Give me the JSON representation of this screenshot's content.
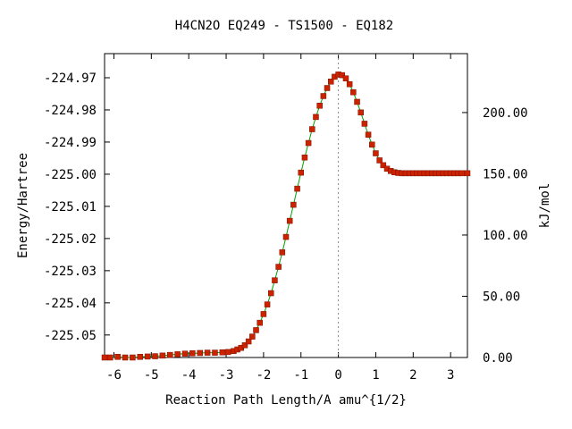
{
  "chart_data": {
    "type": "line",
    "title": "H4CN2O   EQ249 - TS1500 - EQ182",
    "xlabel": "Reaction Path Length/A amu^{1/2}",
    "ylabel": "Energy/Hartree",
    "y2label": "kJ/mol",
    "xlim": [
      -6.25,
      3.45
    ],
    "ylim": [
      -225.057,
      -224.9625
    ],
    "y2lim": [
      0.0,
      248.1
    ],
    "x_ticks": [
      "-6",
      "-5",
      "-4",
      "-3",
      "-2",
      "-1",
      "0",
      "1",
      "2",
      "3"
    ],
    "y_ticks": [
      "-224.97",
      "-224.98",
      "-224.99",
      "-225.00",
      "-225.01",
      "-225.02",
      "-225.03",
      "-225.04",
      "-225.05"
    ],
    "y2_ticks": [
      "0.00",
      "50.00",
      "100.00",
      "150.00",
      "200.00"
    ],
    "ts_marker_x": 0.0,
    "line_color": "#00a000",
    "marker_color": "#cc2200",
    "ts_line_color": "#888888",
    "series": [
      {
        "x": [
          -6.25,
          -6.1,
          -5.9,
          -5.7,
          -5.5,
          -5.3,
          -5.1,
          -4.9,
          -4.7,
          -4.5,
          -4.3,
          -4.1,
          -3.9,
          -3.7,
          -3.5,
          -3.3,
          -3.1,
          -2.95,
          -2.8,
          -2.7,
          -2.6,
          -2.5,
          -2.4,
          -2.3,
          -2.2,
          -2.1,
          -2.0,
          -1.9,
          -1.8,
          -1.7,
          -1.6,
          -1.5,
          -1.4,
          -1.3,
          -1.2,
          -1.1,
          -1.0,
          -0.9,
          -0.8,
          -0.7,
          -0.6,
          -0.5,
          -0.4,
          -0.3,
          -0.2,
          -0.1,
          0.0,
          0.1,
          0.2,
          0.3,
          0.4,
          0.5,
          0.6,
          0.7,
          0.8,
          0.9,
          1.0,
          1.1,
          1.2,
          1.3,
          1.4,
          1.5,
          1.6,
          1.7,
          1.8,
          1.9,
          2.0,
          2.1,
          2.2,
          2.3,
          2.4,
          2.5,
          2.6,
          2.7,
          2.8,
          2.9,
          3.0,
          3.1,
          3.2,
          3.3,
          3.45
        ],
        "y": [
          -225.057,
          -225.057,
          -225.0568,
          -225.057,
          -225.057,
          -225.0568,
          -225.0567,
          -225.0566,
          -225.0564,
          -225.0562,
          -225.056,
          -225.0558,
          -225.0557,
          -225.0556,
          -225.0555,
          -225.0555,
          -225.0554,
          -225.0553,
          -225.055,
          -225.0545,
          -225.054,
          -225.0532,
          -225.052,
          -225.0505,
          -225.0485,
          -225.0462,
          -225.0435,
          -225.0405,
          -225.037,
          -225.033,
          -225.0288,
          -225.0243,
          -225.0195,
          -225.0145,
          -225.0095,
          -225.0045,
          -224.9995,
          -224.9948,
          -224.9903,
          -224.986,
          -224.9822,
          -224.9787,
          -224.9757,
          -224.9732,
          -224.9712,
          -224.9697,
          -224.969,
          -224.9692,
          -224.9702,
          -224.972,
          -224.9745,
          -224.9775,
          -224.9808,
          -224.9843,
          -224.9877,
          -224.9908,
          -224.9935,
          -224.9957,
          -224.9972,
          -224.9983,
          -224.999,
          -224.9994,
          -224.9996,
          -224.9997,
          -224.9997,
          -224.9997,
          -224.9997,
          -224.9997,
          -224.9997,
          -224.9997,
          -224.9997,
          -224.9997,
          -224.9997,
          -224.9997,
          -224.9997,
          -224.9997,
          -224.9997,
          -224.9997,
          -224.9997,
          -224.9997,
          -224.9997
        ]
      }
    ]
  }
}
